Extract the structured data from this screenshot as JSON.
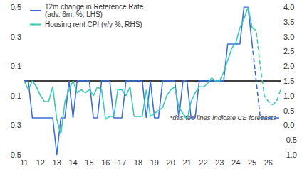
{
  "chart_data": {
    "type": "line",
    "categories": [
      "11",
      null,
      null,
      null,
      "12",
      null,
      null,
      null,
      "13",
      null,
      null,
      null,
      "14",
      null,
      null,
      null,
      "15",
      null,
      null,
      null,
      "16",
      null,
      null,
      null,
      "17",
      null,
      null,
      null,
      "18",
      null,
      null,
      null,
      "19",
      null,
      null,
      null,
      "20",
      null,
      null,
      null,
      "21",
      null,
      null,
      null,
      "22",
      null,
      null,
      null,
      "23",
      null,
      null,
      null,
      "24",
      null,
      null,
      null,
      "25",
      null,
      null,
      null,
      "26",
      null,
      null,
      null
    ],
    "series": [
      {
        "name": "12m change in Reference Rate\n(adv. 6m, %, LHS)",
        "color": "#3b6fd6",
        "axis": "y",
        "line_style": "solid",
        "values": [
          0,
          0,
          -0.25,
          -0.25,
          -0.25,
          -0.25,
          -0.25,
          -0.25,
          -0.5,
          -0.25,
          -0.25,
          0,
          -0.25,
          0,
          0,
          0,
          0,
          -0.25,
          -0.25,
          0,
          0,
          0,
          -0.25,
          -0.25,
          -0.25,
          0,
          0,
          0,
          0,
          0,
          -0.25,
          0,
          -0.25,
          -0.25,
          0,
          0,
          0,
          0,
          -0.25,
          0,
          0,
          -0.25,
          -0.25,
          0,
          0,
          0,
          0,
          0,
          0,
          0,
          0.25,
          0.25,
          0.25,
          0.25,
          0.5,
          0.5,
          0.25,
          null,
          null,
          null,
          null,
          null,
          null,
          null
        ]
      },
      {
        "name": "12m change in Reference Rate\n(adv. 6m, %, LHS)",
        "color": "#3b6fd6",
        "axis": "y",
        "line_style": "dashed",
        "values": [
          null,
          null,
          null,
          null,
          null,
          null,
          null,
          null,
          null,
          null,
          null,
          null,
          null,
          null,
          null,
          null,
          null,
          null,
          null,
          null,
          null,
          null,
          null,
          null,
          null,
          null,
          null,
          null,
          null,
          null,
          null,
          null,
          null,
          null,
          null,
          null,
          null,
          null,
          null,
          null,
          null,
          null,
          null,
          null,
          null,
          null,
          null,
          null,
          null,
          null,
          null,
          null,
          null,
          null,
          null,
          null,
          0.25,
          0,
          -0.25,
          -0.25,
          -0.25,
          -0.25,
          -0.25,
          -0.25
        ]
      },
      {
        "name": "Housing rent CPI (y/y %, RHS)",
        "color": "#3ec9b7",
        "axis": "y2",
        "line_style": "solid",
        "values": [
          1.5,
          1.2,
          1.5,
          1.3,
          1.0,
          0.8,
          0.8,
          1.3,
          0.2,
          -0.3,
          0.8,
          1.2,
          1.5,
          1.1,
          1.2,
          1.1,
          1.2,
          1.0,
          1.3,
          1.2,
          0.2,
          0.3,
          0.3,
          1.2,
          1.2,
          1.0,
          1.3,
          0.3,
          0.3,
          0.3,
          1.2,
          0.3,
          0.4,
          0.5,
          0.6,
          1.0,
          1.2,
          1.3,
          0.6,
          0.4,
          0.2,
          0.8,
          1.1,
          1.3,
          1.3,
          1.4,
          1.6,
          1.5,
          1.5,
          1.8,
          2.2,
          2.6,
          2.8,
          3.3,
          3.6,
          4.0,
          3.3,
          null,
          null,
          null,
          null,
          null,
          null,
          null
        ]
      },
      {
        "name": "Housing rent CPI (y/y %, RHS)",
        "color": "#3ec9b7",
        "axis": "y2",
        "line_style": "dashed",
        "values": [
          null,
          null,
          null,
          null,
          null,
          null,
          null,
          null,
          null,
          null,
          null,
          null,
          null,
          null,
          null,
          null,
          null,
          null,
          null,
          null,
          null,
          null,
          null,
          null,
          null,
          null,
          null,
          null,
          null,
          null,
          null,
          null,
          null,
          null,
          null,
          null,
          null,
          null,
          null,
          null,
          null,
          null,
          null,
          null,
          null,
          null,
          null,
          null,
          null,
          null,
          null,
          null,
          null,
          null,
          null,
          null,
          3.3,
          3.2,
          2.0,
          1.0,
          0.8,
          0.7,
          0.8,
          1.2
        ]
      }
    ],
    "ylim": [
      -0.5,
      0.5
    ],
    "yticks": [
      -0.5,
      -0.3,
      -0.1,
      0.1,
      0.3,
      0.5
    ],
    "y2lim": [
      -1.0,
      4.0
    ],
    "y2ticks": [
      {
        "value": -1.0,
        "label": "-1.0"
      },
      -0.5,
      {
        "value": 0,
        "label": "0.0"
      },
      0.5,
      {
        "value": 1.0,
        "label": "1.0"
      },
      1.5,
      {
        "value": 2.0,
        "label": "2.0"
      },
      2.5,
      {
        "value": 3.0,
        "label": "3.0"
      },
      3.5,
      {
        "value": 4.0,
        "label": "4.0"
      }
    ],
    "annotations": [
      "*dashed lines indicate CE forecasts"
    ],
    "legend": "top-left",
    "grid": false
  }
}
